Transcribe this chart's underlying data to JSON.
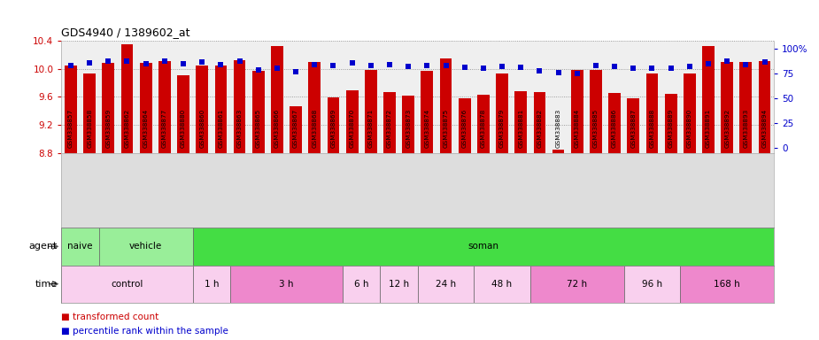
{
  "title": "GDS4940 / 1389602_at",
  "samples": [
    "GSM338857",
    "GSM338858",
    "GSM338859",
    "GSM338862",
    "GSM338864",
    "GSM338877",
    "GSM338880",
    "GSM338860",
    "GSM338861",
    "GSM338863",
    "GSM338865",
    "GSM338866",
    "GSM338867",
    "GSM338868",
    "GSM338869",
    "GSM338870",
    "GSM338871",
    "GSM338872",
    "GSM338873",
    "GSM338874",
    "GSM338875",
    "GSM338876",
    "GSM338878",
    "GSM338879",
    "GSM338881",
    "GSM338882",
    "GSM338883",
    "GSM338884",
    "GSM338885",
    "GSM338886",
    "GSM338887",
    "GSM338888",
    "GSM338889",
    "GSM338890",
    "GSM338891",
    "GSM338892",
    "GSM338893",
    "GSM338894"
  ],
  "bar_values": [
    10.05,
    9.93,
    10.08,
    10.35,
    10.08,
    10.11,
    9.91,
    10.05,
    10.05,
    10.12,
    9.97,
    10.33,
    9.47,
    10.1,
    9.59,
    9.69,
    9.98,
    9.67,
    9.62,
    9.97,
    10.15,
    9.58,
    9.63,
    9.94,
    9.68,
    9.67,
    8.85,
    9.98,
    9.98,
    9.65,
    9.58,
    9.94,
    9.64,
    9.93,
    10.33,
    10.1,
    10.1,
    10.11
  ],
  "percentile_values": [
    83,
    86,
    88,
    88,
    85,
    88,
    85,
    87,
    84,
    88,
    79,
    80,
    77,
    84,
    83,
    86,
    83,
    84,
    82,
    83,
    83,
    81,
    80,
    82,
    81,
    78,
    76,
    75,
    83,
    82,
    80,
    80,
    80,
    82,
    85,
    88,
    84,
    87
  ],
  "ylim_lo": 8.8,
  "ylim_hi": 10.4,
  "yticks": [
    8.8,
    9.2,
    9.6,
    10.0,
    10.4
  ],
  "ytick_labels": [
    "8.8",
    "9.2",
    "9.6",
    "10.0",
    "10.4"
  ],
  "right_yticks": [
    0,
    25,
    50,
    75,
    100
  ],
  "right_ytick_labels": [
    "0",
    "25",
    "50",
    "75",
    "100%"
  ],
  "bar_color": "#cc0000",
  "dot_color": "#0000cc",
  "grid_color": "#888888",
  "bg_color": "#efefef",
  "chart_bg": "#ffffff",
  "xlabel_bg": "#dddddd",
  "agent_groups": [
    {
      "label": "naive",
      "start": 0,
      "end": 2,
      "color": "#99ee99"
    },
    {
      "label": "vehicle",
      "start": 2,
      "end": 7,
      "color": "#99ee99"
    },
    {
      "label": "soman",
      "start": 7,
      "end": 38,
      "color": "#44dd44"
    }
  ],
  "time_groups": [
    {
      "label": "control",
      "start": 0,
      "end": 7,
      "color": "#f9d0ee"
    },
    {
      "label": "1 h",
      "start": 7,
      "end": 9,
      "color": "#f9d0ee"
    },
    {
      "label": "3 h",
      "start": 9,
      "end": 15,
      "color": "#ee88cc"
    },
    {
      "label": "6 h",
      "start": 15,
      "end": 17,
      "color": "#f9d0ee"
    },
    {
      "label": "12 h",
      "start": 17,
      "end": 19,
      "color": "#f9d0ee"
    },
    {
      "label": "24 h",
      "start": 19,
      "end": 22,
      "color": "#f9d0ee"
    },
    {
      "label": "48 h",
      "start": 22,
      "end": 25,
      "color": "#f9d0ee"
    },
    {
      "label": "72 h",
      "start": 25,
      "end": 30,
      "color": "#ee88cc"
    },
    {
      "label": "96 h",
      "start": 30,
      "end": 33,
      "color": "#f9d0ee"
    },
    {
      "label": "168 h",
      "start": 33,
      "end": 38,
      "color": "#ee88cc"
    }
  ]
}
